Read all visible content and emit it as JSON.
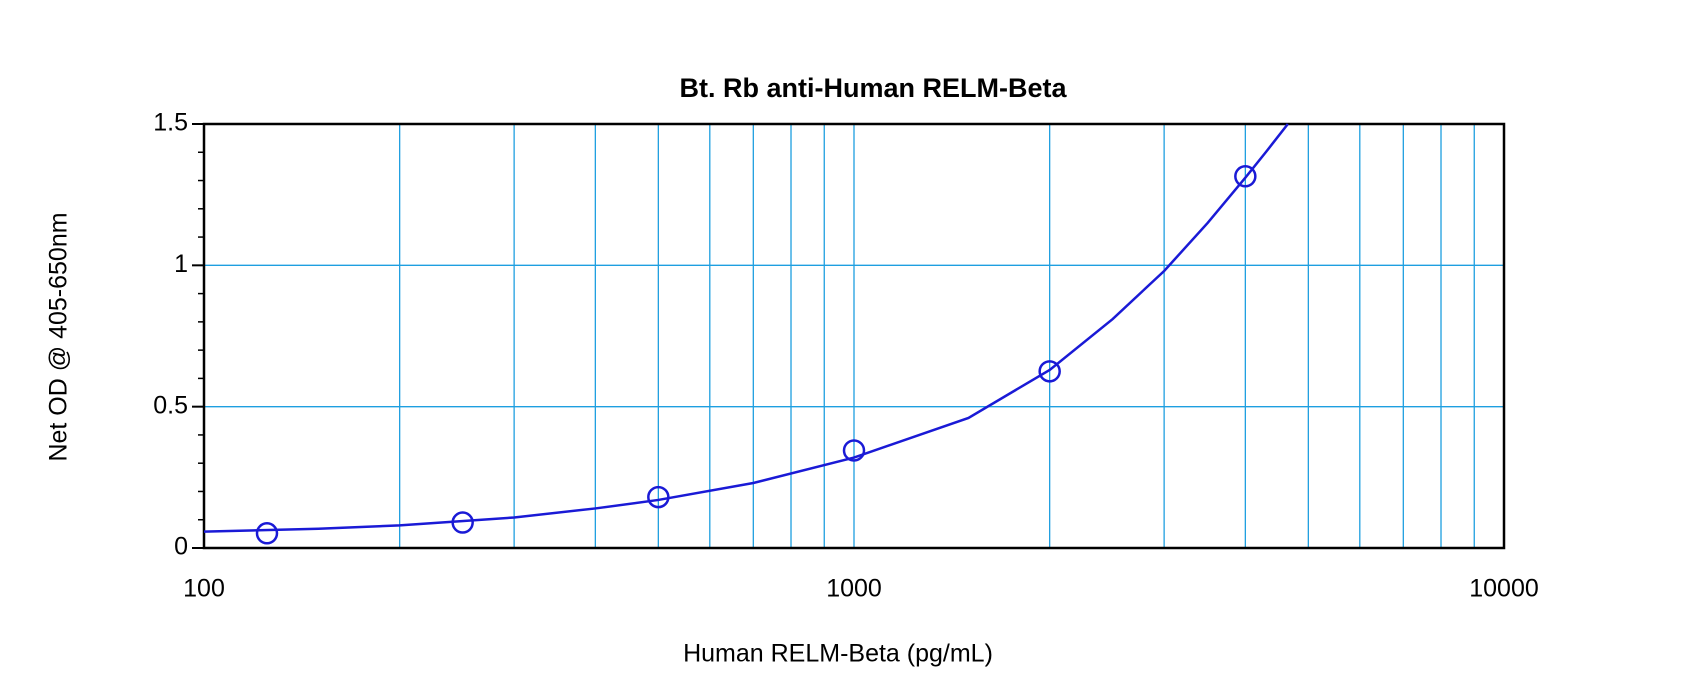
{
  "chart_data": {
    "type": "scatter",
    "title": "Bt. Rb anti-Human RELM-Beta",
    "x_label": "Human RELM-Beta (pg/mL)",
    "y_label": "Net OD @ 405-650nm",
    "x_scale": "log",
    "xlim": [
      100,
      10000
    ],
    "xticks": [
      100,
      1000,
      10000
    ],
    "x_minor_grid": [
      200,
      300,
      400,
      500,
      600,
      700,
      800,
      900,
      2000,
      3000,
      4000,
      5000,
      6000,
      7000,
      8000,
      9000
    ],
    "ylim": [
      0,
      1.5
    ],
    "yticks": [
      0,
      0.5,
      1,
      1.5
    ],
    "y_minor_ticks": [
      0.1,
      0.2,
      0.3,
      0.4,
      0.6,
      0.7,
      0.8,
      0.9,
      1.1,
      1.2,
      1.3,
      1.4
    ],
    "grid": true,
    "grid_color": "#1e9fe0",
    "series": [
      {
        "mode": "markers",
        "color": "#1a1ad6",
        "x": [
          125,
          250,
          500,
          1000,
          2000,
          4000
        ],
        "values": [
          0.052,
          0.09,
          0.18,
          0.345,
          0.625,
          1.315
        ]
      },
      {
        "mode": "line",
        "color": "#1a1ad6",
        "x": [
          100,
          150,
          200,
          300,
          400,
          500,
          700,
          1000,
          1500,
          2000,
          2500,
          3000,
          3500,
          4000,
          4300,
          4650
        ],
        "values": [
          0.058,
          0.068,
          0.08,
          0.108,
          0.14,
          0.17,
          0.23,
          0.32,
          0.46,
          0.63,
          0.81,
          0.98,
          1.15,
          1.31,
          1.4,
          1.5
        ]
      }
    ]
  }
}
